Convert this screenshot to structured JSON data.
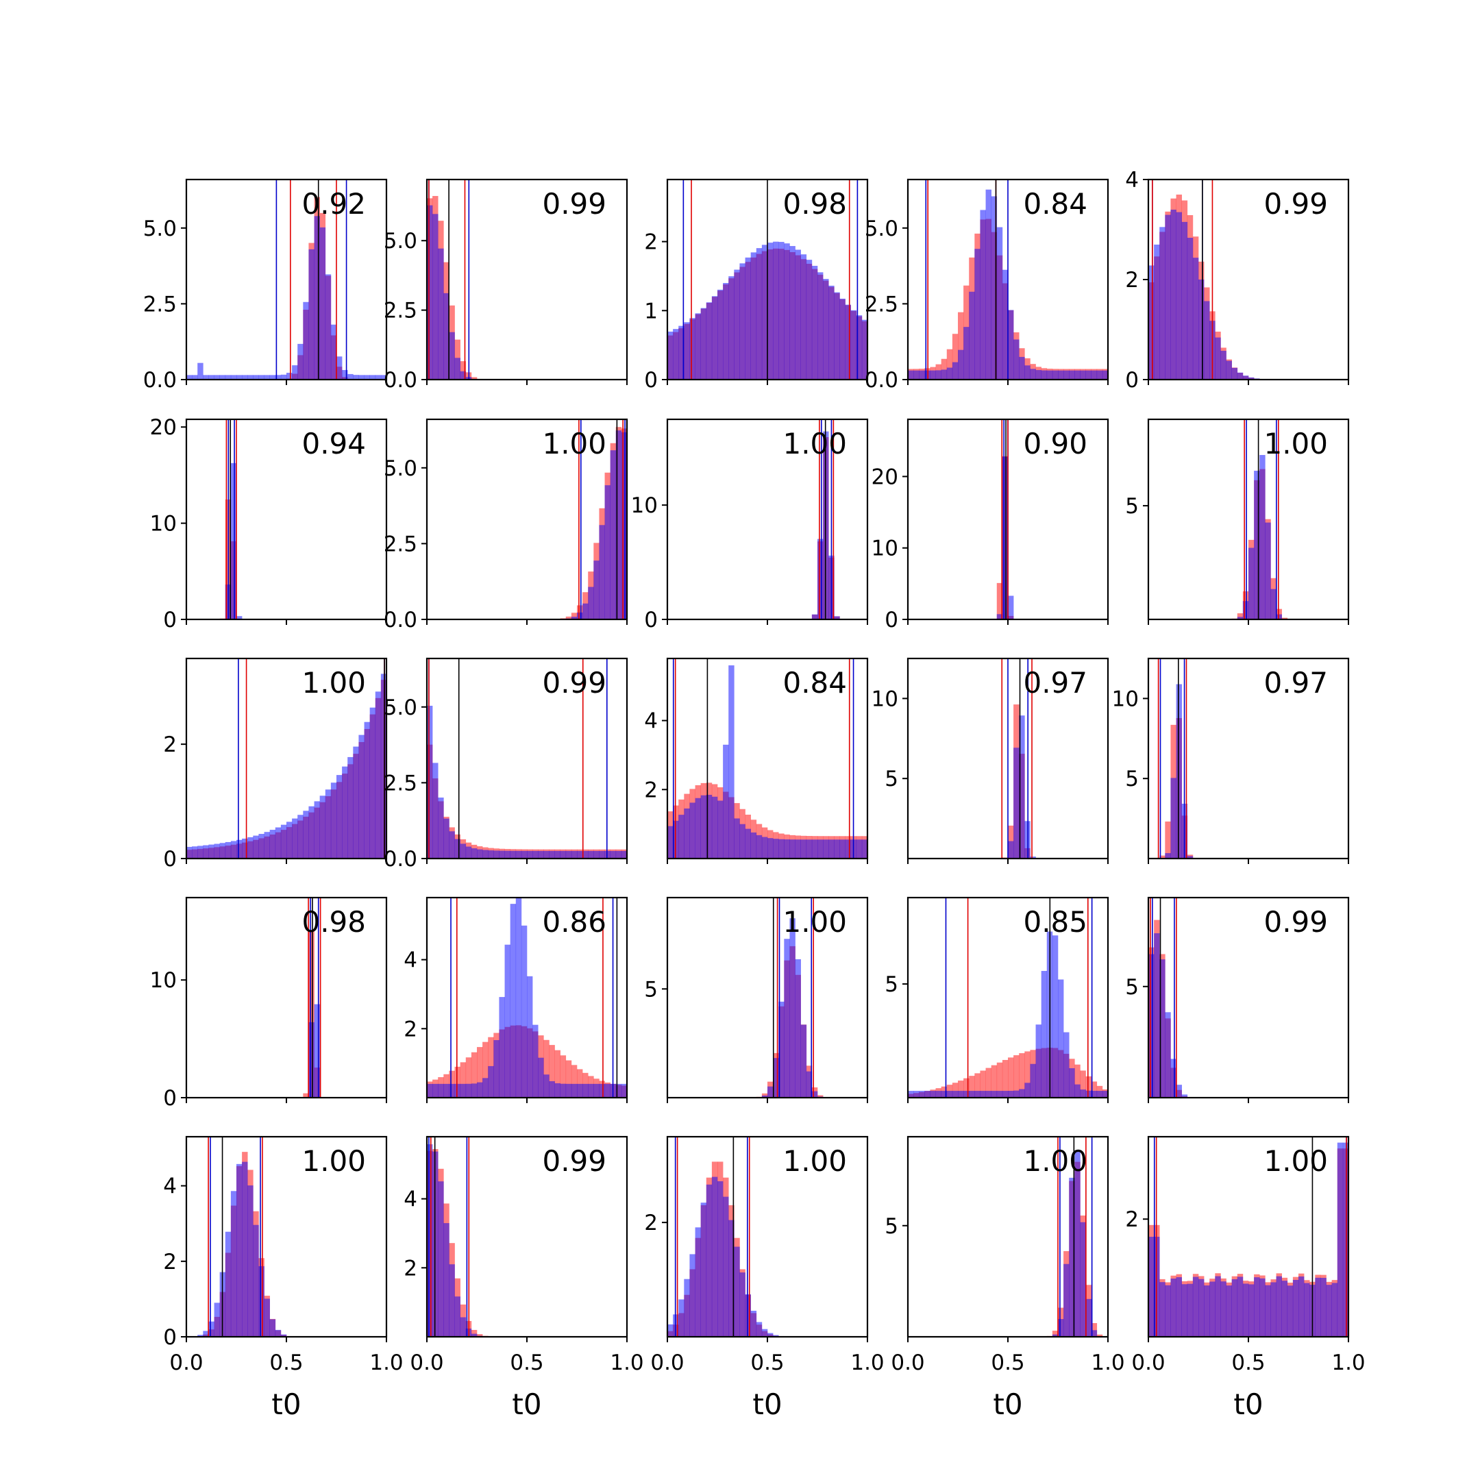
{
  "figure": {
    "xlabel": "t0",
    "xticks": [
      "0.0",
      "0.5",
      "1.0"
    ],
    "xtick_values": [
      0,
      0.5,
      1.0
    ],
    "colors": {
      "red_hist": "#ff0000",
      "blue_hist": "#0000ff",
      "overlap": "#7a3cbf",
      "red_line": "#e00000",
      "blue_line": "#0000cc",
      "truth_line": "#000000"
    },
    "hist_alpha": 0.5
  },
  "chart_data": [
    {
      "type": "bar",
      "label": "0.92",
      "ylim": [
        0,
        6.6
      ],
      "yticks": [
        "0.0",
        "2.5",
        "5.0"
      ],
      "ytick_values": [
        0,
        2.5,
        5.0
      ],
      "red": {
        "peak": 0.66,
        "width": 0.045,
        "height": 6.1,
        "floor": 0.0
      },
      "blue": {
        "peak": 0.66,
        "width": 0.05,
        "height": 5.3,
        "floor": 0.15,
        "extra": [
          [
            0.08,
            0.55
          ]
        ]
      },
      "vlines": {
        "red": [
          0.52,
          0.75
        ],
        "blue": [
          0.45,
          0.8
        ],
        "black": [
          0.66
        ]
      }
    },
    {
      "type": "bar",
      "label": "0.99",
      "ylim": [
        0,
        7.2
      ],
      "yticks": [
        "0.0",
        "2.5",
        "5.0"
      ],
      "ytick_values": [
        0,
        2.5,
        5.0
      ],
      "red": {
        "peak": 0.03,
        "width": 0.07,
        "height": 6.7,
        "floor": 0.0
      },
      "blue": {
        "peak": 0.02,
        "width": 0.065,
        "height": 6.3,
        "floor": 0.0
      },
      "vlines": {
        "red": [
          0.01,
          0.19
        ],
        "blue": [
          0.01,
          0.21
        ],
        "black": [
          0.11
        ]
      }
    },
    {
      "type": "bar",
      "label": "0.98",
      "ylim": [
        0,
        2.9
      ],
      "yticks": [
        "0",
        "1",
        "2"
      ],
      "ytick_values": [
        0,
        1,
        2
      ],
      "red": {
        "peak": 0.55,
        "width": 0.28,
        "height": 1.5,
        "floor": 0.4
      },
      "blue": {
        "peak": 0.55,
        "width": 0.25,
        "height": 1.45,
        "floor": 0.55,
        "extra": [
          [
            0.5,
            1.9
          ]
        ]
      },
      "vlines": {
        "red": [
          0.12,
          0.91
        ],
        "blue": [
          0.08,
          0.95
        ],
        "black": [
          0.5
        ]
      }
    },
    {
      "type": "bar",
      "label": "0.84",
      "ylim": [
        0,
        6.6
      ],
      "yticks": [
        "0.0",
        "2.5",
        "5.0"
      ],
      "ytick_values": [
        0,
        2.5,
        5.0
      ],
      "red": {
        "peak": 0.39,
        "width": 0.09,
        "height": 5.0,
        "floor": 0.35
      },
      "blue": {
        "peak": 0.41,
        "width": 0.07,
        "height": 6.0,
        "floor": 0.3
      },
      "vlines": {
        "red": [
          0.1,
          0.44
        ],
        "blue": [
          0.09,
          0.5
        ],
        "black": [
          0.44
        ]
      }
    },
    {
      "type": "bar",
      "label": "0.99",
      "ylim": [
        0,
        4.0
      ],
      "yticks": [
        "0",
        "2",
        "4"
      ],
      "ytick_values": [
        0,
        2,
        4
      ],
      "red": {
        "peak": 0.15,
        "width": 0.12,
        "height": 3.7,
        "floor": 0.0
      },
      "blue": {
        "peak": 0.13,
        "width": 0.13,
        "height": 3.4,
        "floor": 0.0
      },
      "vlines": {
        "red": [
          0.02,
          0.32
        ],
        "blue": [
          0.02,
          0.27
        ],
        "black": [
          0.27
        ]
      }
    },
    {
      "type": "bar",
      "label": "0.94",
      "ylim": [
        0,
        20.8
      ],
      "yticks": [
        "0",
        "10",
        "20"
      ],
      "ytick_values": [
        0,
        10,
        20
      ],
      "red": {
        "peak": 0.22,
        "width": 0.012,
        "height": 20.0,
        "floor": 0.0
      },
      "blue": {
        "peak": 0.23,
        "width": 0.012,
        "height": 18.5,
        "floor": 0.0
      },
      "vlines": {
        "red": [
          0.2,
          0.25
        ],
        "blue": [
          0.21,
          0.24
        ],
        "black": [
          0.22
        ]
      }
    },
    {
      "type": "bar",
      "label": "1.00",
      "ylim": [
        0,
        6.6
      ],
      "yticks": [
        "0.0",
        "2.5",
        "5.0"
      ],
      "ytick_values": [
        0,
        2.5,
        5.0
      ],
      "red": {
        "peak": 0.97,
        "width": 0.09,
        "height": 6.4,
        "floor": 0.0
      },
      "blue": {
        "peak": 0.97,
        "width": 0.08,
        "height": 6.3,
        "floor": 0.0
      },
      "vlines": {
        "red": [
          0.76,
          0.98
        ],
        "blue": [
          0.77,
          0.99
        ],
        "black": [
          0.95
        ]
      }
    },
    {
      "type": "bar",
      "label": "1.00",
      "ylim": [
        0,
        17.5
      ],
      "yticks": [
        "0",
        "10"
      ],
      "ytick_values": [
        0,
        10
      ],
      "red": {
        "peak": 0.79,
        "width": 0.02,
        "height": 16.0,
        "floor": 0.0
      },
      "blue": {
        "peak": 0.79,
        "width": 0.02,
        "height": 16.5,
        "floor": 0.0
      },
      "vlines": {
        "red": [
          0.76,
          0.83
        ],
        "blue": [
          0.77,
          0.82
        ],
        "black": [
          0.79
        ]
      }
    },
    {
      "type": "bar",
      "label": "0.90",
      "ylim": [
        0,
        28.0
      ],
      "yticks": [
        "0",
        "10",
        "20"
      ],
      "ytick_values": [
        0,
        10,
        20
      ],
      "red": {
        "peak": 0.48,
        "width": 0.012,
        "height": 26.0,
        "floor": 0.0
      },
      "blue": {
        "peak": 0.49,
        "width": 0.012,
        "height": 24.0,
        "floor": 0.0
      },
      "vlines": {
        "red": [
          0.47,
          0.5
        ],
        "blue": [
          0.48,
          0.5
        ],
        "black": [
          0.49
        ]
      }
    },
    {
      "type": "bar",
      "label": "1.00",
      "ylim": [
        0,
        8.8
      ],
      "yticks": [
        "5"
      ],
      "ytick_values": [
        5
      ],
      "red": {
        "peak": 0.56,
        "width": 0.04,
        "height": 6.8,
        "floor": 0.0
      },
      "blue": {
        "peak": 0.56,
        "width": 0.035,
        "height": 7.5,
        "floor": 0.0
      },
      "vlines": {
        "red": [
          0.48,
          0.65
        ],
        "blue": [
          0.49,
          0.64
        ],
        "black": [
          0.55
        ]
      }
    },
    {
      "type": "bar",
      "label": "1.00",
      "ylim": [
        0,
        3.5
      ],
      "yticks": [
        "0",
        "2"
      ],
      "ytick_values": [
        0,
        2
      ],
      "red": {
        "growth": "exp",
        "start": 0.15,
        "end": 3.3,
        "rate": 4.0
      },
      "blue": {
        "growth": "exp",
        "start": 0.2,
        "end": 3.4,
        "rate": 3.8
      },
      "vlines": {
        "red": [
          0.3,
          0.99
        ],
        "blue": [
          0.26,
          0.99
        ],
        "black": [
          0.99
        ]
      }
    },
    {
      "type": "bar",
      "label": "0.99",
      "ylim": [
        0,
        6.6
      ],
      "yticks": [
        "0.0",
        "2.5",
        "5.0"
      ],
      "ytick_values": [
        0,
        2.5,
        5.0
      ],
      "red": {
        "decay": "exp",
        "start": 4.5,
        "floor": 0.3,
        "rate": 14.0
      },
      "blue": {
        "decay": "exp",
        "start": 6.4,
        "floor": 0.25,
        "rate": 18.0
      },
      "vlines": {
        "red": [
          0.01,
          0.78
        ],
        "blue": [
          0.01,
          0.9
        ],
        "black": [
          0.16
        ]
      }
    },
    {
      "type": "bar",
      "label": "0.84",
      "ylim": [
        0,
        5.8
      ],
      "yticks": [
        "2",
        "4"
      ],
      "ytick_values": [
        2,
        4
      ],
      "red": {
        "peak": 0.2,
        "width": 0.15,
        "height": 1.55,
        "floor": 0.65
      },
      "blue": {
        "peak": 0.2,
        "width": 0.12,
        "height": 1.3,
        "floor": 0.55,
        "extra": [
          [
            0.32,
            5.6
          ],
          [
            0.3,
            3.3
          ]
        ]
      },
      "vlines": {
        "red": [
          0.04,
          0.91
        ],
        "blue": [
          0.03,
          0.93
        ],
        "black": [
          0.2
        ]
      }
    },
    {
      "type": "bar",
      "label": "0.97",
      "ylim": [
        0,
        12.5
      ],
      "yticks": [
        "5",
        "10"
      ],
      "ytick_values": [
        5,
        10
      ],
      "red": {
        "peak": 0.55,
        "width": 0.02,
        "height": 10.5,
        "floor": 0.0
      },
      "blue": {
        "peak": 0.56,
        "width": 0.022,
        "height": 9.8,
        "floor": 0.0
      },
      "vlines": {
        "red": [
          0.47,
          0.62
        ],
        "blue": [
          0.5,
          0.6
        ],
        "black": [
          0.56
        ]
      }
    },
    {
      "type": "bar",
      "label": "0.97",
      "ylim": [
        0,
        12.5
      ],
      "yticks": [
        "5",
        "10"
      ],
      "ytick_values": [
        5,
        10
      ],
      "red": {
        "peak": 0.14,
        "width": 0.025,
        "height": 10.0,
        "floor": 0.0
      },
      "blue": {
        "peak": 0.15,
        "width": 0.02,
        "height": 11.0,
        "floor": 0.0
      },
      "vlines": {
        "red": [
          0.05,
          0.19
        ],
        "blue": [
          0.06,
          0.18
        ],
        "black": [
          0.15
        ]
      }
    },
    {
      "type": "bar",
      "label": "0.98",
      "ylim": [
        0,
        17.0
      ],
      "yticks": [
        "0",
        "10"
      ],
      "ytick_values": [
        0,
        10
      ],
      "red": {
        "peak": 0.63,
        "width": 0.012,
        "height": 15.5,
        "floor": 0.0
      },
      "blue": {
        "peak": 0.64,
        "width": 0.012,
        "height": 14.0,
        "floor": 0.0
      },
      "vlines": {
        "red": [
          0.61,
          0.67
        ],
        "blue": [
          0.62,
          0.66
        ],
        "black": [
          0.63
        ]
      }
    },
    {
      "type": "bar",
      "label": "0.86",
      "ylim": [
        0,
        5.8
      ],
      "yticks": [
        "2",
        "4"
      ],
      "ytick_values": [
        2,
        4
      ],
      "red": {
        "peak": 0.45,
        "width": 0.2,
        "height": 1.8,
        "floor": 0.3
      },
      "blue": {
        "peak": 0.45,
        "width": 0.06,
        "height": 5.5,
        "floor": 0.4
      },
      "vlines": {
        "red": [
          0.15,
          0.88
        ],
        "blue": [
          0.12,
          0.93
        ],
        "black": [
          0.95
        ]
      }
    },
    {
      "type": "bar",
      "label": "1.00",
      "ylim": [
        0,
        9.2
      ],
      "yticks": [
        "5"
      ],
      "ytick_values": [
        5
      ],
      "red": {
        "peak": 0.62,
        "width": 0.05,
        "height": 7.0,
        "floor": 0.0
      },
      "blue": {
        "peak": 0.62,
        "width": 0.045,
        "height": 8.3,
        "floor": 0.0
      },
      "vlines": {
        "red": [
          0.55,
          0.73
        ],
        "blue": [
          0.56,
          0.72
        ],
        "black": [
          0.53
        ]
      }
    },
    {
      "type": "bar",
      "label": "0.85",
      "ylim": [
        0,
        8.8
      ],
      "yticks": [
        "5"
      ],
      "ytick_values": [
        5
      ],
      "red": {
        "skew": "left",
        "peak": 0.72,
        "width": 0.14,
        "height": 2.2,
        "floor": 0.0
      },
      "blue": {
        "peak": 0.72,
        "width": 0.05,
        "height": 7.2,
        "floor": 0.3
      },
      "vlines": {
        "red": [
          0.3,
          0.9
        ],
        "blue": [
          0.19,
          0.92
        ],
        "black": [
          0.71
        ]
      }
    },
    {
      "type": "bar",
      "label": "0.99",
      "ylim": [
        0,
        9.0
      ],
      "yticks": [
        "5"
      ],
      "ytick_values": [
        5
      ],
      "red": {
        "peak": 0.04,
        "width": 0.045,
        "height": 8.0,
        "floor": 0.0
      },
      "blue": {
        "peak": 0.04,
        "width": 0.05,
        "height": 7.4,
        "floor": 0.0
      },
      "vlines": {
        "red": [
          0.01,
          0.14
        ],
        "blue": [
          0.02,
          0.13
        ],
        "black": [
          0.06
        ]
      }
    },
    {
      "type": "bar",
      "label": "1.00",
      "ylim": [
        0,
        5.3
      ],
      "yticks": [
        "0",
        "2",
        "4"
      ],
      "ytick_values": [
        0,
        2,
        4
      ],
      "red": {
        "peak": 0.29,
        "width": 0.065,
        "height": 4.9,
        "floor": 0.0
      },
      "blue": {
        "peak": 0.28,
        "width": 0.07,
        "height": 4.7,
        "floor": 0.0
      },
      "vlines": {
        "red": [
          0.11,
          0.38
        ],
        "blue": [
          0.12,
          0.37
        ],
        "black": [
          0.18
        ]
      }
    },
    {
      "type": "bar",
      "label": "0.99",
      "ylim": [
        0,
        5.8
      ],
      "yticks": [
        "2",
        "4"
      ],
      "ytick_values": [
        2,
        4
      ],
      "red": {
        "peak": 0.03,
        "width": 0.08,
        "height": 5.5,
        "floor": 0.0
      },
      "blue": {
        "peak": 0.02,
        "width": 0.075,
        "height": 5.6,
        "floor": 0.0
      },
      "vlines": {
        "red": [
          0.02,
          0.21
        ],
        "blue": [
          0.01,
          0.2
        ],
        "black": [
          0.04
        ]
      }
    },
    {
      "type": "bar",
      "label": "1.00",
      "ylim": [
        0,
        3.5
      ],
      "yticks": [
        "2"
      ],
      "ytick_values": [
        2
      ],
      "red": {
        "peak": 0.25,
        "width": 0.09,
        "height": 3.1,
        "floor": 0.0
      },
      "blue": {
        "peak": 0.24,
        "width": 0.1,
        "height": 2.8,
        "floor": 0.0
      },
      "vlines": {
        "red": [
          0.05,
          0.41
        ],
        "blue": [
          0.04,
          0.4
        ],
        "black": [
          0.33
        ]
      }
    },
    {
      "type": "bar",
      "label": "1.00",
      "ylim": [
        0,
        9.0
      ],
      "yticks": [
        "5"
      ],
      "ytick_values": [
        5
      ],
      "red": {
        "peak": 0.84,
        "width": 0.04,
        "height": 8.0,
        "floor": 0.0
      },
      "blue": {
        "peak": 0.84,
        "width": 0.035,
        "height": 8.5,
        "floor": 0.0
      },
      "vlines": {
        "red": [
          0.75,
          0.89
        ],
        "blue": [
          0.76,
          0.92
        ],
        "black": [
          0.83
        ]
      }
    },
    {
      "type": "bar",
      "label": "1.00",
      "ylim": [
        0,
        3.4
      ],
      "yticks": [
        "2"
      ],
      "ytick_values": [
        2
      ],
      "red": {
        "flat": 1.0,
        "edges": [
          [
            0.02,
            1.9
          ],
          [
            0.98,
            3.2
          ]
        ]
      },
      "blue": {
        "flat": 0.95,
        "edges": [
          [
            0.02,
            1.7
          ],
          [
            0.98,
            3.3
          ]
        ]
      },
      "vlines": {
        "red": [
          0.04,
          0.99
        ],
        "blue": [
          0.03,
          0.99
        ],
        "black": [
          0.82
        ]
      }
    }
  ]
}
